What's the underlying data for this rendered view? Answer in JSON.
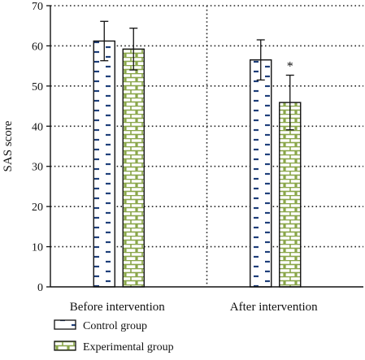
{
  "chart_data": {
    "type": "bar",
    "categories": [
      "Before intervention",
      "After intervention"
    ],
    "series": [
      {
        "name": "Control group",
        "values": [
          61.2,
          56.5
        ],
        "error": [
          4.9,
          5.0
        ],
        "color": "#1f3f7a",
        "pattern": "dashes"
      },
      {
        "name": "Experimental group",
        "values": [
          59.2,
          45.9
        ],
        "error": [
          5.2,
          6.8
        ],
        "color": "#8aa64a",
        "pattern": "bricks"
      }
    ],
    "annotations": [
      {
        "text": "*",
        "category_index": 1,
        "series_index": 1
      }
    ],
    "ylabel": "SAS score",
    "xlabel": "",
    "ylim": [
      0,
      70
    ],
    "yticks": [
      0,
      10,
      20,
      30,
      40,
      50,
      60,
      70
    ],
    "grid": true,
    "grid_style": "dotted",
    "legend": {
      "placement": "bottom-left",
      "entries": [
        "Control group",
        "Experimental group"
      ]
    }
  }
}
